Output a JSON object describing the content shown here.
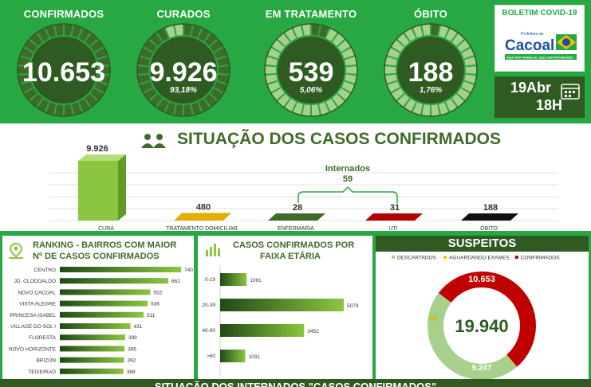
{
  "kpis": [
    {
      "label": "CONFIRMADOS",
      "value": "10.653",
      "pct": "",
      "fill": 1.0
    },
    {
      "label": "CURADOS",
      "value": "9.926",
      "pct": "93,18%",
      "fill": 0.9318
    },
    {
      "label": "EM TRATAMENTO",
      "value": "539",
      "pct": "5,06%",
      "fill": 0.0506
    },
    {
      "label": "ÓBITO",
      "value": "188",
      "pct": "1,76%",
      "fill": 0.0176
    }
  ],
  "boletim": {
    "title": "BOLETIM COVID-19",
    "logo_small": "Prefeitura de",
    "logo_name": "Cacoal",
    "logo_tag": "AQUI TEM TRABALHO, AQUI TEM PROGRESSO!"
  },
  "date": {
    "day": "19Abr",
    "hour": "18H"
  },
  "situacao": {
    "title": "SITUAÇÃO DOS CASOS CONFIRMADOS",
    "internados_label": "Internados",
    "internados_value": "59",
    "bars": [
      {
        "label": "CURA",
        "value": "9.926",
        "n": 9926,
        "color": "#8cc63f"
      },
      {
        "label": "TRATAMENTO DOMICILIAR",
        "value": "480",
        "n": 480,
        "color": "#e0b000"
      },
      {
        "label": "ENFERMARIA",
        "value": "28",
        "n": 28,
        "color": "#3f6b2a"
      },
      {
        "label": "UTI",
        "value": "31",
        "n": 31,
        "color": "#b00000"
      },
      {
        "label": "ÓBITO",
        "value": "188",
        "n": 188,
        "color": "#111111"
      }
    ]
  },
  "ranking": {
    "title1": "RANKING - BAIRROS COM MAIOR",
    "title2": "Nº DE CASOS CONFIRMADOS",
    "rows": [
      {
        "name": "CENTRO",
        "value": "740",
        "n": 740
      },
      {
        "name": "JD. CLODOALDO",
        "value": "662",
        "n": 662
      },
      {
        "name": "NOVO CACOAL",
        "value": "552",
        "n": 552
      },
      {
        "name": "VISTA ALEGRE",
        "value": "536",
        "n": 536
      },
      {
        "name": "PRINCESA ISABEL",
        "value": "511",
        "n": 511
      },
      {
        "name": "VILLAGE DO SOL I",
        "value": "431",
        "n": 431
      },
      {
        "name": "FLORESTA",
        "value": "399",
        "n": 399
      },
      {
        "name": "NOVO HORIZONTE",
        "value": "395",
        "n": 395
      },
      {
        "name": "BRIZON",
        "value": "392",
        "n": 392
      },
      {
        "name": "TEIXEIRAO",
        "value": "388",
        "n": 388
      }
    ]
  },
  "faixa": {
    "title1": "CASOS CONFIRMADOS POR",
    "title2": "FAIXA ETÁRIA",
    "rows": [
      {
        "name": "0-19",
        "value": "1091",
        "n": 1091
      },
      {
        "name": "20-39",
        "value": "5079",
        "n": 5079
      },
      {
        "name": "40-60",
        "value": "3452",
        "n": 3452
      },
      {
        "name": ">60",
        "value": "1031",
        "n": 1031
      }
    ]
  },
  "suspeitos": {
    "title": "SUSPEITOS",
    "legend": [
      {
        "name": "DESCARTADOS",
        "color": "#a8d08d"
      },
      {
        "name": "AGUARDANDO EXAMES",
        "color": "#f2c200"
      },
      {
        "name": "CONFIRMADOS",
        "color": "#c00000"
      }
    ],
    "total": "19.940",
    "confirmados": "10.653",
    "descartados": "9.247",
    "aguardando": "40",
    "slices": [
      {
        "name": "CONFIRMADOS",
        "n": 10653
      },
      {
        "name": "AGUARDANDO EXAMES",
        "n": 40
      },
      {
        "name": "DESCARTADOS",
        "n": 9247
      }
    ]
  },
  "footer": "SITUAÇÃO DOS INTERNADOS \"CASOS CONFIRMADOS\""
}
